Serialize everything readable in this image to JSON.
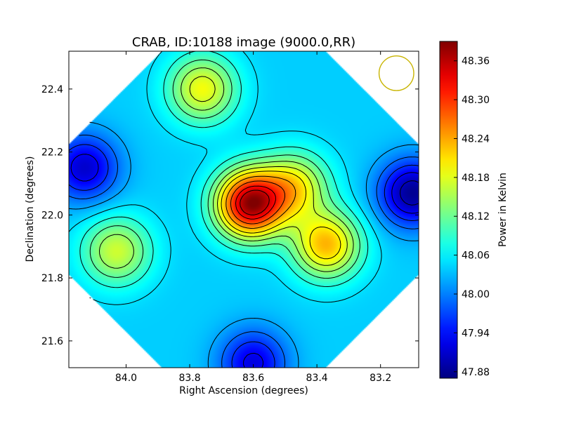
{
  "chart_data": {
    "type": "heatmap",
    "title": "CRAB, ID:10188 image (9000.0,RR)",
    "xlabel": "Right Ascension (degrees)",
    "ylabel": "Declination (degrees)",
    "colorbar_label": "Power in Kelvin",
    "xlim": [
      84.18,
      83.08
    ],
    "ylim": [
      21.515,
      22.52
    ],
    "x_ticks": [
      84.0,
      83.8,
      83.6,
      83.4,
      83.2
    ],
    "x_tick_labels": [
      "84.0",
      "83.8",
      "83.6",
      "83.4",
      "83.2"
    ],
    "y_ticks": [
      21.6,
      21.8,
      22.0,
      22.2,
      22.4
    ],
    "y_tick_labels": [
      "21.6",
      "21.8",
      "22.0",
      "22.2",
      "22.4"
    ],
    "colorbar_range": [
      47.87,
      48.39
    ],
    "colorbar_ticks": [
      47.88,
      47.94,
      48.0,
      48.06,
      48.12,
      48.18,
      48.24,
      48.3,
      48.36
    ],
    "colorbar_tick_labels": [
      "47.88",
      "47.94",
      "48.00",
      "48.06",
      "48.12",
      "48.18",
      "48.24",
      "48.30",
      "48.36"
    ],
    "colormap": "jet",
    "baseline_power": 48.04,
    "field_components": [
      {
        "feature": "peak",
        "ra": 83.61,
        "dec": 22.035,
        "power": 48.37
      },
      {
        "feature": "peak",
        "ra": 83.37,
        "dec": 21.905,
        "power": 48.23
      },
      {
        "feature": "peak",
        "ra": 83.47,
        "dec": 22.09,
        "power": 48.19
      },
      {
        "feature": "peak",
        "ra": 83.76,
        "dec": 22.4,
        "power": 48.19
      },
      {
        "feature": "peak",
        "ra": 84.03,
        "dec": 21.885,
        "power": 48.17
      },
      {
        "feature": "low",
        "ra": 84.13,
        "dec": 22.15,
        "power": 47.91
      },
      {
        "feature": "low",
        "ra": 83.1,
        "dec": 22.07,
        "power": 47.88
      },
      {
        "feature": "low",
        "ra": 83.6,
        "dec": 21.53,
        "power": 47.92
      }
    ],
    "contour_levels": [
      47.9,
      47.93,
      47.96,
      47.99,
      48.02,
      48.05,
      48.08,
      48.11,
      48.14,
      48.17,
      48.2,
      48.24,
      48.28,
      48.32,
      48.35
    ],
    "beam": {
      "ra": 83.15,
      "dec": 22.45,
      "radius_deg": 0.055,
      "color": "#c8b400"
    },
    "grid": false,
    "legend": "none"
  }
}
